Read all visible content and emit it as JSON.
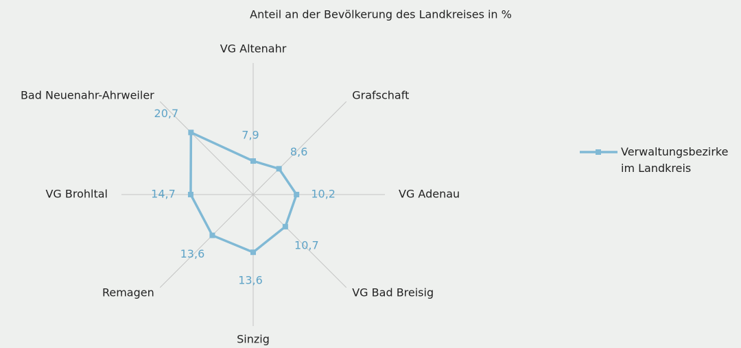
{
  "chart_data": {
    "type": "radar",
    "title": "Anteil an der Bevölkerung des Landkreises in %",
    "categories": [
      "VG Altenahr",
      "Grafschaft",
      "VG Adenau",
      "VG Bad Breisig",
      "Sinzig",
      "Remagen",
      "VG Brohltal",
      "Bad Neuenahr-Ahrweiler"
    ],
    "series": [
      {
        "name": "Verwaltungsbezirke im Landkreis",
        "color": "#80b9d5",
        "values": [
          7.9,
          8.6,
          10.2,
          10.7,
          13.6,
          13.6,
          14.7,
          20.7
        ],
        "value_labels": [
          "7,9",
          "8,6",
          "10,2",
          "10,7",
          "13,6",
          "13,6",
          "14,7",
          "20,7"
        ]
      }
    ],
    "rlim": [
      0,
      31
    ],
    "legend": "right"
  }
}
